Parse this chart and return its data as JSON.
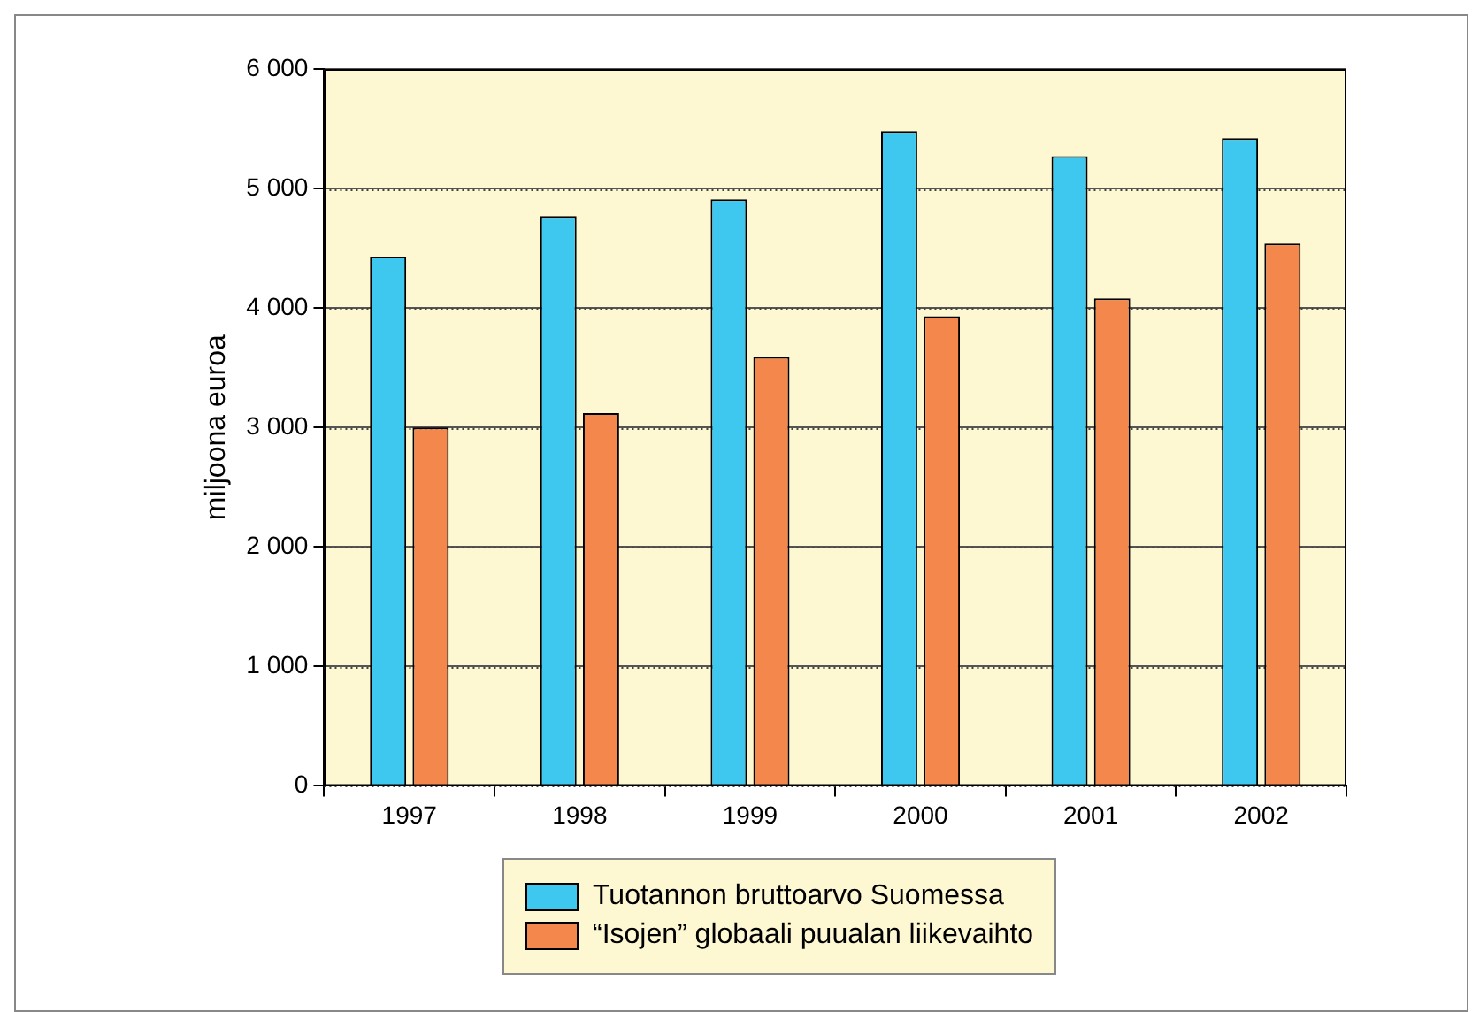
{
  "chart_data": {
    "type": "bar",
    "ylabel": "miljoona euroa",
    "categories": [
      "1997",
      "1998",
      "1999",
      "2000",
      "2001",
      "2002"
    ],
    "series": [
      {
        "name": "Tuotannon bruttoarvo Suomessa",
        "color": "#3ec8f0",
        "values": [
          4430,
          4770,
          4910,
          5480,
          5270,
          5420
        ]
      },
      {
        "name": "“Isojen” globaali puualan liikevaihto",
        "color": "#f4874b",
        "values": [
          3000,
          3120,
          3590,
          3930,
          4080,
          4540
        ]
      }
    ],
    "ylim": [
      0,
      6000
    ],
    "yticks": [
      0,
      {
        "value": 1000,
        "label": "1 000"
      },
      {
        "value": 2000,
        "label": "2 000"
      },
      {
        "value": 3000,
        "label": "3 000"
      },
      {
        "value": 4000,
        "label": "4 000"
      },
      {
        "value": 5000,
        "label": "5 000"
      },
      {
        "value": 6000,
        "label": "6 000"
      }
    ],
    "grid": "y",
    "legend": "bottom"
  }
}
